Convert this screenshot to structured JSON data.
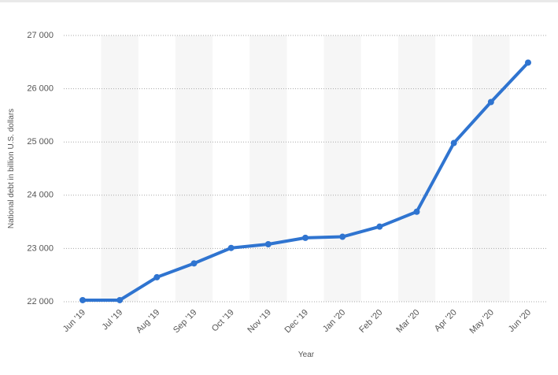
{
  "chart_data": {
    "type": "line",
    "title": "",
    "xlabel": "Year",
    "ylabel": "National debt in billion U.S. dollars",
    "categories": [
      "Jun '19",
      "Jul '19",
      "Aug '19",
      "Sep '19",
      "Oct '19",
      "Nov '19",
      "Dec '19",
      "Jan '20",
      "Feb '20",
      "Mar '20",
      "Apr '20",
      "May '20",
      "Jun '20"
    ],
    "values": [
      22030,
      22030,
      22460,
      22720,
      23010,
      23080,
      23200,
      23220,
      23410,
      23690,
      24980,
      25750,
      26490
    ],
    "ylim": [
      22000,
      27000
    ],
    "yticks": [
      22000,
      23000,
      24000,
      25000,
      26000,
      27000
    ],
    "ytick_labels": [
      "22 000",
      "23 000",
      "24 000",
      "25 000",
      "26 000",
      "27 000"
    ],
    "grid": true,
    "line_color": "#2f74d0",
    "band_color": "#f6f6f6"
  }
}
